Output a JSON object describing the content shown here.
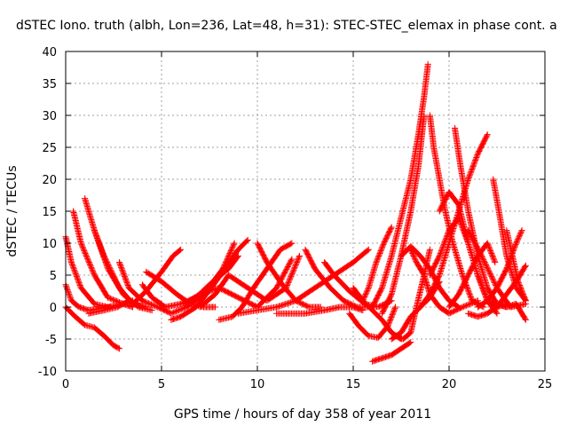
{
  "chart_data": {
    "type": "scatter",
    "title": "dSTEC Iono. truth (albh, Lon=236, Lat=48, h=31): STEC-STEC_elemax in phase cont. a",
    "xlabel": "GPS time / hours of day 358 of year 2011",
    "ylabel": "dSTEC  / TECUs",
    "xlim": [
      0,
      25
    ],
    "ylim": [
      -10,
      40
    ],
    "x_ticks": [
      "0",
      "5",
      "10",
      "15",
      "20",
      "25"
    ],
    "y_ticks": [
      "-10",
      "-5",
      "0",
      "5",
      "10",
      "15",
      "20",
      "25",
      "30",
      "35",
      "40"
    ],
    "grid": true,
    "marker": "plus",
    "color": "#ff0000",
    "series": [
      {
        "x": [
          0.0,
          0.5,
          1.0,
          1.5,
          2.0,
          2.5,
          2.8
        ],
        "y": [
          0,
          -1.5,
          -2.8,
          -3.2,
          -4.5,
          -6,
          -6.5
        ]
      },
      {
        "x": [
          0.0,
          0.3,
          0.7,
          1.2,
          1.8,
          2.3
        ],
        "y": [
          3.5,
          1,
          0,
          -0.5,
          -0.2,
          0
        ]
      },
      {
        "x": [
          0.0,
          0.3,
          0.8,
          1.5,
          2.2,
          3.0,
          3.5
        ],
        "y": [
          11,
          7,
          3,
          0.5,
          0,
          0.5,
          1
        ]
      },
      {
        "x": [
          0.4,
          0.8,
          1.5,
          2.2,
          3.0,
          3.5
        ],
        "y": [
          15,
          10,
          5,
          1.5,
          0.5,
          0
        ]
      },
      {
        "x": [
          1.0,
          1.5,
          2.2,
          3.0,
          3.8,
          4.5
        ],
        "y": [
          17,
          12,
          6,
          2,
          0,
          -0.5
        ]
      },
      {
        "x": [
          1.5,
          2.0,
          2.8,
          3.5,
          4.2
        ],
        "y": [
          12,
          8,
          3,
          0.5,
          0
        ]
      },
      {
        "x": [
          1.2,
          2.0,
          2.7,
          3.3,
          4.0
        ],
        "y": [
          -1,
          -0.5,
          0,
          1,
          0
        ]
      },
      {
        "x": [
          2.8,
          3.3,
          4.0,
          4.8,
          5.5,
          6.3,
          7.2,
          8.2,
          8.8
        ],
        "y": [
          7,
          3,
          1,
          0,
          -1,
          0,
          2,
          6,
          10
        ]
      },
      {
        "x": [
          4.0,
          4.5,
          5.2,
          6.0,
          6.8,
          7.5,
          8.5,
          9.0
        ],
        "y": [
          3.5,
          1.5,
          0,
          0.5,
          1.5,
          3.5,
          6,
          8
        ]
      },
      {
        "x": [
          4.2,
          5.0,
          5.8,
          6.5,
          7.2,
          7.8
        ],
        "y": [
          5.5,
          4,
          2,
          0.5,
          0,
          0
        ]
      },
      {
        "x": [
          3.5,
          4.2,
          5.0,
          5.6,
          6.0
        ],
        "y": [
          0.5,
          2.5,
          5.5,
          8,
          9
        ]
      },
      {
        "x": [
          5.5,
          6.0,
          6.8,
          7.6,
          8.3,
          9.0,
          9.5
        ],
        "y": [
          -2,
          -1.5,
          0,
          3,
          6,
          9,
          10.5
        ]
      },
      {
        "x": [
          6.2,
          7.0,
          8.0,
          9.0,
          10.0,
          11.0,
          11.8
        ],
        "y": [
          0.5,
          2,
          3,
          1.5,
          0,
          3,
          7.5
        ]
      },
      {
        "x": [
          7.0,
          7.8,
          8.5,
          9.5,
          10.5,
          11.5,
          12.2
        ],
        "y": [
          0,
          2,
          5,
          3,
          1,
          3,
          8
        ]
      },
      {
        "x": [
          8.0,
          8.7,
          9.2,
          9.8,
          10.5,
          11.2,
          11.8
        ],
        "y": [
          -2,
          -1.5,
          0,
          3,
          6,
          9,
          10
        ]
      },
      {
        "x": [
          10.0,
          10.5,
          11.3,
          12.0,
          12.7,
          13.3
        ],
        "y": [
          10,
          7,
          3.5,
          1,
          0,
          0
        ]
      },
      {
        "x": [
          9.0,
          10.0,
          11.0,
          12.0,
          13.0,
          14.0,
          15.0,
          15.8
        ],
        "y": [
          -1,
          -0.5,
          0,
          1,
          3,
          5,
          7,
          9
        ]
      },
      {
        "x": [
          12.5,
          13.0,
          13.8,
          14.5,
          15.2,
          16.0
        ],
        "y": [
          9,
          6,
          3,
          1,
          0,
          0
        ]
      },
      {
        "x": [
          13.5,
          14.0,
          14.8,
          15.6,
          16.3,
          17.0
        ],
        "y": [
          7,
          5,
          2.5,
          0.5,
          0,
          1
        ]
      },
      {
        "x": [
          11.0,
          12.5,
          13.5,
          14.3,
          15.0,
          15.5
        ],
        "y": [
          -1,
          -1,
          -0.5,
          0,
          0,
          -0.5
        ]
      },
      {
        "x": [
          15.0,
          15.5,
          16.0,
          16.5,
          17.0,
          17.5
        ],
        "y": [
          3,
          1,
          -0.5,
          -2,
          -4,
          -5
        ]
      },
      {
        "x": [
          15.5,
          15.8,
          16.2,
          16.6,
          17.0
        ],
        "y": [
          1,
          3,
          7,
          10,
          12.5
        ]
      },
      {
        "x": [
          14.8,
          15.3,
          15.8,
          16.3,
          16.8,
          17.2
        ],
        "y": [
          -1,
          -3,
          -4.5,
          -4.8,
          -3,
          0
        ]
      },
      {
        "x": [
          16.0,
          16.5,
          17.0,
          17.5,
          18.0,
          18.4,
          18.7,
          18.9
        ],
        "y": [
          0,
          3,
          8,
          14,
          20,
          27,
          33,
          38
        ]
      },
      {
        "x": [
          16.5,
          17.0,
          17.5,
          18.0,
          18.4,
          18.7
        ],
        "y": [
          -1,
          2,
          8,
          15,
          22,
          30
        ]
      },
      {
        "x": [
          17.2,
          17.6,
          18.0,
          18.3,
          18.7,
          19.0
        ],
        "y": [
          -4.5,
          -5,
          -4,
          0,
          5,
          9
        ]
      },
      {
        "x": [
          16.0,
          16.5,
          17.0,
          17.5,
          18.0
        ],
        "y": [
          -8.5,
          -8,
          -7.5,
          -6.5,
          -5.5
        ]
      },
      {
        "x": [
          17.0,
          17.5,
          18.0,
          18.5,
          19.0,
          19.5
        ],
        "y": [
          -5,
          -4,
          -1.5,
          0,
          1.5,
          4
        ]
      },
      {
        "x": [
          18.0,
          18.3,
          18.7,
          19.0,
          19.5,
          20.0,
          20.7,
          21.5
        ],
        "y": [
          9,
          7,
          5,
          2,
          0,
          -1,
          0,
          1
        ]
      },
      {
        "x": [
          19.0,
          19.2,
          19.5,
          19.8,
          20.2,
          20.7,
          21.2,
          21.8
        ],
        "y": [
          30,
          25,
          20,
          15,
          10,
          5,
          1,
          0
        ]
      },
      {
        "x": [
          17.5,
          18.0,
          18.5,
          19.0,
          19.5,
          20.0,
          20.5
        ],
        "y": [
          8,
          9.5,
          8,
          6,
          3,
          1,
          0
        ]
      },
      {
        "x": [
          18.5,
          19.0,
          19.5,
          20.0,
          20.5,
          21.0,
          21.5,
          22.0
        ],
        "y": [
          0,
          2,
          5,
          10,
          15,
          20,
          24,
          27
        ]
      },
      {
        "x": [
          20.3,
          20.6,
          21.0,
          21.5,
          22.0,
          22.5,
          23.0
        ],
        "y": [
          28,
          22,
          15,
          8,
          3,
          0.5,
          0
        ]
      },
      {
        "x": [
          19.5,
          20.0,
          20.5,
          21.0,
          21.5,
          22.0,
          22.5,
          23.0
        ],
        "y": [
          15,
          18,
          16,
          10,
          5,
          1,
          0,
          0.5
        ]
      },
      {
        "x": [
          19.0,
          19.5,
          20.0,
          20.5,
          21.0,
          21.5,
          22.0,
          22.5
        ],
        "y": [
          5,
          8,
          12,
          14,
          10,
          5,
          1,
          -1
        ]
      },
      {
        "x": [
          20.0,
          20.5,
          21.0,
          21.5,
          22.0,
          22.4
        ],
        "y": [
          0,
          2,
          5,
          8,
          10,
          7
        ]
      },
      {
        "x": [
          22.3,
          22.6,
          23.0,
          23.5,
          24.0
        ],
        "y": [
          20,
          15,
          8,
          3,
          1
        ]
      },
      {
        "x": [
          21.5,
          22.0,
          22.5,
          23.0,
          23.5,
          23.8
        ],
        "y": [
          0,
          1,
          3,
          6,
          10,
          12
        ]
      },
      {
        "x": [
          21.0,
          21.5,
          22.0,
          22.5,
          23.0,
          23.5,
          24.0
        ],
        "y": [
          -1,
          -1.5,
          -1,
          0,
          2,
          4,
          6.5
        ]
      },
      {
        "x": [
          22.0,
          22.5,
          23.0,
          23.5,
          24.0
        ],
        "y": [
          1,
          0.5,
          0,
          0.5,
          -2
        ]
      },
      {
        "x": [
          23.0,
          23.3,
          23.6,
          24.0
        ],
        "y": [
          12,
          8,
          4,
          1
        ]
      },
      {
        "x": [
          21.0,
          21.7,
          22.5,
          23.2,
          24.0
        ],
        "y": [
          12,
          8,
          3,
          0,
          0.5
        ]
      }
    ]
  }
}
